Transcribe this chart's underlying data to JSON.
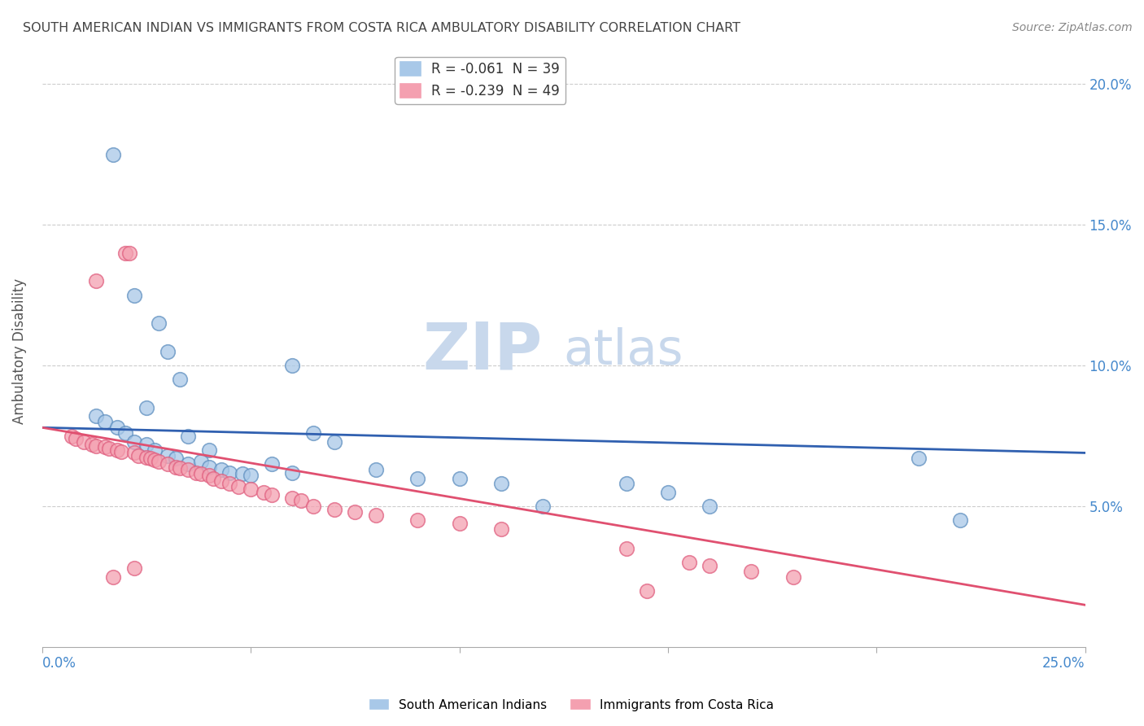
{
  "title": "SOUTH AMERICAN INDIAN VS IMMIGRANTS FROM COSTA RICA AMBULATORY DISABILITY CORRELATION CHART",
  "source": "Source: ZipAtlas.com",
  "ylabel": "Ambulatory Disability",
  "xmin": 0.0,
  "xmax": 0.25,
  "ymin": 0.0,
  "ymax": 0.21,
  "legend_blue": "R = -0.061  N = 39",
  "legend_pink": "R = -0.239  N = 49",
  "legend_label_blue": "South American Indians",
  "legend_label_pink": "Immigrants from Costa Rica",
  "blue_color": "#a8c8e8",
  "pink_color": "#f4a0b0",
  "blue_edge_color": "#6090c0",
  "pink_edge_color": "#e06080",
  "blue_line_color": "#3060b0",
  "pink_line_color": "#e05070",
  "background_color": "#ffffff",
  "grid_color": "#cccccc",
  "title_color": "#444444",
  "axis_label_color": "#4488cc",
  "watermark_zip": "ZIP",
  "watermark_atlas": "atlas",
  "watermark_color_zip": "#c8d8ec",
  "watermark_color_atlas": "#c8d8ec",
  "blue_scatter_x": [
    0.017,
    0.022,
    0.028,
    0.03,
    0.033,
    0.013,
    0.015,
    0.018,
    0.02,
    0.022,
    0.025,
    0.027,
    0.03,
    0.032,
    0.035,
    0.038,
    0.04,
    0.043,
    0.045,
    0.048,
    0.05,
    0.055,
    0.06,
    0.065,
    0.07,
    0.08,
    0.09,
    0.1,
    0.11,
    0.12,
    0.14,
    0.15,
    0.16,
    0.21,
    0.22,
    0.025,
    0.035,
    0.04,
    0.06
  ],
  "blue_scatter_y": [
    0.175,
    0.125,
    0.115,
    0.105,
    0.095,
    0.082,
    0.08,
    0.078,
    0.076,
    0.073,
    0.072,
    0.07,
    0.068,
    0.067,
    0.065,
    0.066,
    0.064,
    0.063,
    0.062,
    0.0615,
    0.061,
    0.065,
    0.062,
    0.076,
    0.073,
    0.063,
    0.06,
    0.06,
    0.058,
    0.05,
    0.058,
    0.055,
    0.05,
    0.067,
    0.045,
    0.085,
    0.075,
    0.07,
    0.1
  ],
  "pink_scatter_x": [
    0.007,
    0.008,
    0.01,
    0.012,
    0.013,
    0.015,
    0.016,
    0.018,
    0.019,
    0.02,
    0.021,
    0.022,
    0.023,
    0.025,
    0.026,
    0.027,
    0.028,
    0.03,
    0.032,
    0.033,
    0.035,
    0.037,
    0.038,
    0.04,
    0.041,
    0.043,
    0.045,
    0.047,
    0.05,
    0.053,
    0.055,
    0.06,
    0.062,
    0.065,
    0.07,
    0.075,
    0.08,
    0.09,
    0.1,
    0.11,
    0.14,
    0.155,
    0.16,
    0.17,
    0.18,
    0.013,
    0.017,
    0.022,
    0.145
  ],
  "pink_scatter_y": [
    0.075,
    0.074,
    0.073,
    0.072,
    0.0715,
    0.071,
    0.0705,
    0.07,
    0.0695,
    0.14,
    0.14,
    0.069,
    0.068,
    0.0675,
    0.067,
    0.0665,
    0.066,
    0.065,
    0.064,
    0.0635,
    0.063,
    0.062,
    0.0615,
    0.061,
    0.06,
    0.059,
    0.058,
    0.057,
    0.056,
    0.055,
    0.054,
    0.053,
    0.052,
    0.05,
    0.049,
    0.048,
    0.047,
    0.045,
    0.044,
    0.042,
    0.035,
    0.03,
    0.029,
    0.027,
    0.025,
    0.13,
    0.025,
    0.028,
    0.02
  ],
  "blue_line_x0": 0.0,
  "blue_line_x1": 0.25,
  "blue_line_y0": 0.078,
  "blue_line_y1": 0.069,
  "pink_line_x0": 0.0,
  "pink_line_x1": 0.25,
  "pink_line_y0": 0.078,
  "pink_line_y1": 0.015
}
